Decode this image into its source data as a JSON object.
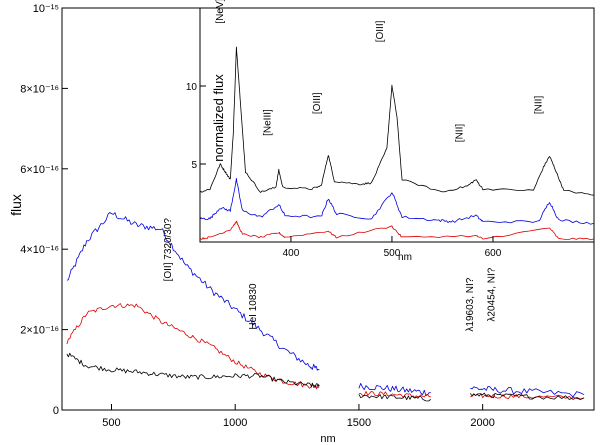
{
  "chart_data": [
    {
      "type": "line",
      "title": "",
      "xlabel": "nm",
      "ylabel": "flux",
      "xlim": [
        300,
        2450
      ],
      "ylim": [
        0,
        1e-15
      ],
      "grid": false,
      "x_ticks": [
        500,
        1000,
        1500,
        2000
      ],
      "x_tick_labels": [
        "500",
        "1000",
        "1500",
        "2000"
      ],
      "y_ticks": [
        0,
        2e-16,
        4e-16,
        6e-16,
        8e-16,
        1e-15
      ],
      "y_tick_labels": [
        "0",
        "2×10⁻¹⁶",
        "4×10⁻¹⁶",
        "6×10⁻¹⁶",
        "8×10⁻¹⁶",
        "10⁻¹⁵"
      ],
      "series": [
        {
          "name": "blue",
          "color": "#0000dd",
          "points": [
            [
              320,
              3.2e-16
            ],
            [
              400,
              4.2e-16
            ],
            [
              500,
              4.9e-16
            ],
            [
              600,
              4.6e-16
            ],
            [
              700,
              4.5e-16
            ],
            [
              800,
              3.6e-16
            ],
            [
              900,
              3e-16
            ],
            [
              1000,
              2.5e-16
            ],
            [
              1100,
              2e-16
            ],
            [
              1200,
              1.5e-16
            ],
            [
              1300,
              1.1e-16
            ],
            [
              1340,
              1e-16
            ],
            null,
            [
              1500,
              6e-17
            ],
            [
              1600,
              5.5e-17
            ],
            [
              1700,
              4.8e-17
            ],
            [
              1790,
              4.3e-17
            ],
            null,
            [
              1950,
              5.5e-17
            ],
            [
              2050,
              5e-17
            ],
            [
              2200,
              4.5e-17
            ],
            [
              2410,
              3.8e-17
            ]
          ]
        },
        {
          "name": "red",
          "color": "#dd0000",
          "points": [
            [
              320,
              1.7e-16
            ],
            [
              400,
              2.4e-16
            ],
            [
              500,
              2.6e-16
            ],
            [
              600,
              2.6e-16
            ],
            [
              700,
              2.2e-16
            ],
            [
              800,
              1.9e-16
            ],
            [
              900,
              1.6e-16
            ],
            [
              1000,
              1.2e-16
            ],
            [
              1100,
              9e-17
            ],
            [
              1200,
              7e-17
            ],
            [
              1300,
              6e-17
            ],
            [
              1340,
              5.8e-17
            ],
            null,
            [
              1500,
              4.2e-17
            ],
            [
              1600,
              4e-17
            ],
            [
              1700,
              3.6e-17
            ],
            [
              1790,
              3.3e-17
            ],
            null,
            [
              1950,
              3.5e-17
            ],
            [
              2050,
              3.5e-17
            ],
            [
              2200,
              3.3e-17
            ],
            [
              2410,
              3e-17
            ]
          ]
        },
        {
          "name": "black",
          "color": "#000000",
          "points": [
            [
              320,
              1.4e-16
            ],
            [
              400,
              1.1e-16
            ],
            [
              500,
              1e-16
            ],
            [
              600,
              9.5e-17
            ],
            [
              700,
              8.8e-17
            ],
            [
              800,
              8.2e-17
            ],
            [
              900,
              8.2e-17
            ],
            [
              1000,
              8.5e-17
            ],
            [
              1100,
              8.5e-17
            ],
            [
              1200,
              7e-17
            ],
            [
              1300,
              6.2e-17
            ],
            [
              1340,
              6e-17
            ],
            null,
            [
              1500,
              3.6e-17
            ],
            [
              1600,
              3.3e-17
            ],
            [
              1700,
              3e-17
            ],
            [
              1790,
              2.7e-17
            ],
            null,
            [
              1950,
              3.8e-17
            ],
            [
              2050,
              3.6e-17
            ],
            [
              2200,
              3.3e-17
            ],
            [
              2410,
              3e-17
            ]
          ]
        }
      ],
      "annotations": [
        {
          "text": "[OII] 7320/30?",
          "x": 740,
          "y": 3.2e-16,
          "rotation": -90
        },
        {
          "text": "HeI 10830",
          "x": 1085,
          "y": 2e-16,
          "rotation": -90
        },
        {
          "text": "λ19603, NI?",
          "x": 1960,
          "y": 1.95e-16,
          "rotation": -90
        },
        {
          "text": "λ20454, NI?",
          "x": 2048,
          "y": 2.2e-16,
          "rotation": -90
        }
      ]
    },
    {
      "type": "line",
      "title": "",
      "xlabel": "nm",
      "ylabel": "normalized flux",
      "xlim": [
        310,
        700
      ],
      "ylim": [
        0,
        15
      ],
      "grid": false,
      "x_ticks": [
        400,
        500,
        600
      ],
      "x_tick_labels": [
        "400",
        "500",
        "600"
      ],
      "y_ticks": [
        5,
        10
      ],
      "y_tick_labels": [
        "5",
        "10"
      ],
      "series": [
        {
          "name": "black",
          "color": "#000000",
          "points": [
            [
              310,
              3.2
            ],
            [
              320,
              3.4
            ],
            [
              330,
              5.0
            ],
            [
              335,
              4.5
            ],
            [
              340,
              4.0
            ],
            [
              343,
              7.0
            ],
            [
              346,
              12.5
            ],
            [
              350,
              9.0
            ],
            [
              355,
              4.5
            ],
            [
              370,
              3.2
            ],
            [
              385,
              3.5
            ],
            [
              388,
              4.6
            ],
            [
              392,
              3.5
            ],
            [
              420,
              3.4
            ],
            [
              430,
              3.6
            ],
            [
              437,
              5.6
            ],
            [
              443,
              3.9
            ],
            [
              468,
              3.7
            ],
            [
              480,
              3.8
            ],
            [
              495,
              6.0
            ],
            [
              500,
              10.0
            ],
            [
              505,
              8.0
            ],
            [
              510,
              4.0
            ],
            [
              550,
              3.2
            ],
            [
              575,
              3.6
            ],
            [
              583,
              4.0
            ],
            [
              590,
              3.4
            ],
            [
              640,
              3.3
            ],
            [
              650,
              4.8
            ],
            [
              656,
              5.5
            ],
            [
              662,
              4.6
            ],
            [
              670,
              3.3
            ],
            [
              700,
              3.0
            ]
          ]
        },
        {
          "name": "blue",
          "color": "#0000dd",
          "points": [
            [
              310,
              1.5
            ],
            [
              320,
              1.5
            ],
            [
              330,
              2.2
            ],
            [
              340,
              2.0
            ],
            [
              346,
              4.0
            ],
            [
              352,
              2.0
            ],
            [
              370,
              1.6
            ],
            [
              388,
              2.4
            ],
            [
              394,
              1.7
            ],
            [
              430,
              1.6
            ],
            [
              437,
              2.8
            ],
            [
              445,
              1.8
            ],
            [
              480,
              1.5
            ],
            [
              500,
              3.2
            ],
            [
              510,
              1.6
            ],
            [
              545,
              1.4
            ],
            [
              560,
              1.3
            ],
            [
              583,
              1.7
            ],
            [
              590,
              1.3
            ],
            [
              645,
              1.3
            ],
            [
              656,
              2.6
            ],
            [
              665,
              1.4
            ],
            [
              700,
              1.2
            ]
          ]
        },
        {
          "name": "red",
          "color": "#dd0000",
          "points": [
            [
              310,
              0.2
            ],
            [
              320,
              0.3
            ],
            [
              340,
              0.8
            ],
            [
              346,
              1.3
            ],
            [
              352,
              0.5
            ],
            [
              370,
              0.3
            ],
            [
              388,
              0.6
            ],
            [
              394,
              0.3
            ],
            [
              437,
              0.7
            ],
            [
              445,
              0.3
            ],
            [
              500,
              1.0
            ],
            [
              510,
              0.3
            ],
            [
              583,
              0.4
            ],
            [
              590,
              0.2
            ],
            [
              656,
              0.9
            ],
            [
              665,
              0.2
            ],
            [
              700,
              0.2
            ]
          ]
        }
      ],
      "annotations": [
        {
          "text": "[NeV]",
          "x": 333,
          "y": 14.0,
          "rotation": -90
        },
        {
          "text": "[NeIII]",
          "x": 380,
          "y": 6.8,
          "rotation": -90
        },
        {
          "text": "[OIII]",
          "x": 429,
          "y": 8.2,
          "rotation": -90
        },
        {
          "text": "[OIII]",
          "x": 491,
          "y": 12.8,
          "rotation": -90
        },
        {
          "text": "[NII]",
          "x": 570,
          "y": 6.4,
          "rotation": -90
        },
        {
          "text": "[NII]",
          "x": 648,
          "y": 8.2,
          "rotation": -90
        }
      ]
    }
  ]
}
